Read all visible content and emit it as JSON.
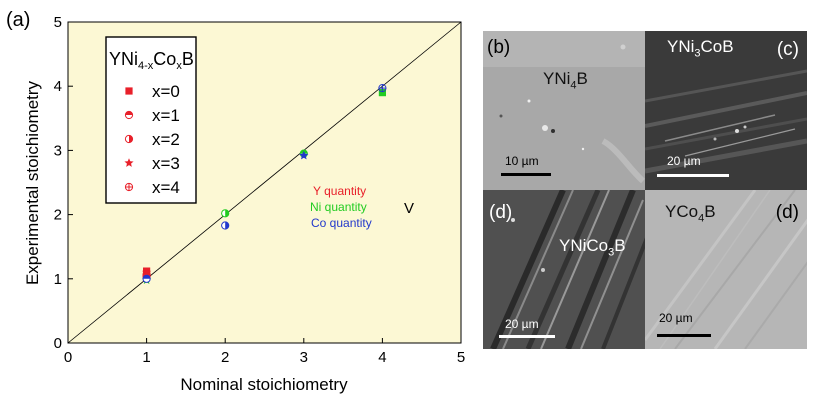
{
  "figure": {
    "panel_a_label": "(a)",
    "micrographs": [
      {
        "id": "b",
        "panel_label": "(b)",
        "compound": [
          "YNi",
          "4",
          "B"
        ],
        "scale_bar": "10 µm"
      },
      {
        "id": "c",
        "panel_label": "(c)",
        "compound": [
          "YNi",
          "3",
          "CoB"
        ],
        "scale_bar": "20 µm"
      },
      {
        "id": "d1",
        "panel_label": "(d)",
        "compound": [
          "YNiCo",
          "3",
          "B"
        ],
        "scale_bar": "20 µm"
      },
      {
        "id": "d2",
        "panel_label": "(d)",
        "compound": [
          "YCo",
          "4",
          "B"
        ],
        "scale_bar": "20 µm"
      }
    ]
  },
  "chart_data": {
    "type": "scatter",
    "xlabel": "Nominal stoichiometry",
    "ylabel": "Experimental stoichiometry",
    "xlim": [
      0,
      5
    ],
    "ylim": [
      0,
      5
    ],
    "xticks": [
      "0",
      "1",
      "2",
      "3",
      "4",
      "5"
    ],
    "yticks": [
      "0",
      "1",
      "2",
      "3",
      "4",
      "5"
    ],
    "reference_line": {
      "from": [
        0,
        0
      ],
      "to": [
        5,
        5
      ]
    },
    "legend": {
      "title_parts": [
        "YNi",
        "4-x",
        "Co",
        "x",
        "B"
      ],
      "entries": [
        {
          "label": "x=0",
          "marker": "square"
        },
        {
          "label": "x=1",
          "marker": "half-circle-top"
        },
        {
          "label": "x=2",
          "marker": "half-circle-right"
        },
        {
          "label": "x=3",
          "marker": "star"
        },
        {
          "label": "x=4",
          "marker": "circle-plus"
        }
      ]
    },
    "color_key": [
      {
        "label": "Y quantity",
        "color": "#e8202a"
      },
      {
        "label": "Ni quantity",
        "color": "#22cc22"
      },
      {
        "label": "Co quantity",
        "color": "#2238cc"
      }
    ],
    "annotation": "V",
    "series": [
      {
        "name": "Y quantity",
        "color": "#e8202a",
        "points": [
          {
            "x": 1,
            "y": 1.12,
            "marker": "square"
          },
          {
            "x": 1,
            "y": 1.07,
            "marker": "half-circle-top"
          },
          {
            "x": 1,
            "y": 1.03,
            "marker": "half-circle-right"
          },
          {
            "x": 1,
            "y": 1.1,
            "marker": "star"
          },
          {
            "x": 1,
            "y": 1.05,
            "marker": "circle-plus"
          }
        ]
      },
      {
        "name": "Ni quantity",
        "color": "#22cc22",
        "points": [
          {
            "x": 4,
            "y": 3.9,
            "marker": "square"
          },
          {
            "x": 3,
            "y": 2.95,
            "marker": "half-circle-top"
          },
          {
            "x": 2,
            "y": 2.02,
            "marker": "half-circle-right"
          },
          {
            "x": 1,
            "y": 0.98,
            "marker": "star"
          }
        ]
      },
      {
        "name": "Co quantity",
        "color": "#2238cc",
        "points": [
          {
            "x": 1,
            "y": 1.0,
            "marker": "half-circle-top"
          },
          {
            "x": 2,
            "y": 1.83,
            "marker": "half-circle-right"
          },
          {
            "x": 3,
            "y": 2.92,
            "marker": "star"
          },
          {
            "x": 4,
            "y": 3.97,
            "marker": "circle-plus"
          }
        ]
      }
    ]
  }
}
